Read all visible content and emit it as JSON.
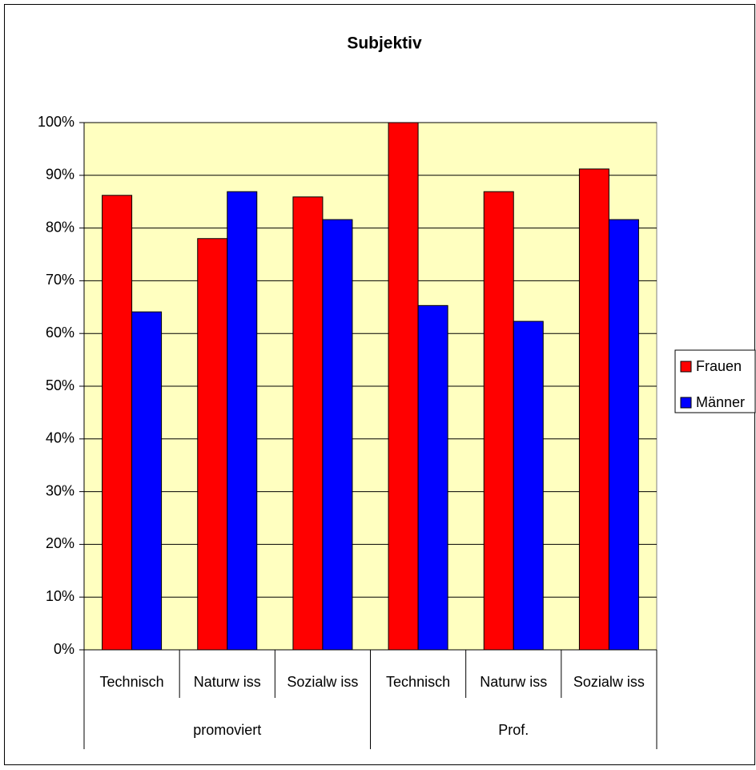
{
  "chart_data": {
    "type": "bar",
    "title": "Subjektiv",
    "categories": [
      "Technisch",
      "Naturw iss",
      "Sozialw iss",
      "Technisch",
      "Naturw iss",
      "Sozialw iss"
    ],
    "groups": [
      "promoviert",
      "Prof."
    ],
    "series": [
      {
        "name": "Frauen",
        "color": "#ff0000",
        "values": [
          86.2,
          78.0,
          85.9,
          100,
          86.9,
          91.2
        ]
      },
      {
        "name": "Männer",
        "color": "#0000ff",
        "values": [
          64.1,
          86.9,
          81.6,
          65.3,
          62.3,
          81.6
        ]
      }
    ],
    "ylim": [
      0,
      100
    ],
    "yticks": [
      {
        "value": 0,
        "label": "0%"
      },
      {
        "value": 10,
        "label": "10%"
      },
      {
        "value": 20,
        "label": "20%"
      },
      {
        "value": 30,
        "label": "30%"
      },
      {
        "value": 40,
        "label": "40%"
      },
      {
        "value": 50,
        "label": "50%"
      },
      {
        "value": 60,
        "label": "60%"
      },
      {
        "value": 70,
        "label": "70%"
      },
      {
        "value": 80,
        "label": "80%"
      },
      {
        "value": 90,
        "label": "90%"
      },
      {
        "value": 100,
        "label": "100%"
      }
    ],
    "grid": true,
    "background": "#ffffc0",
    "legend": "right"
  }
}
